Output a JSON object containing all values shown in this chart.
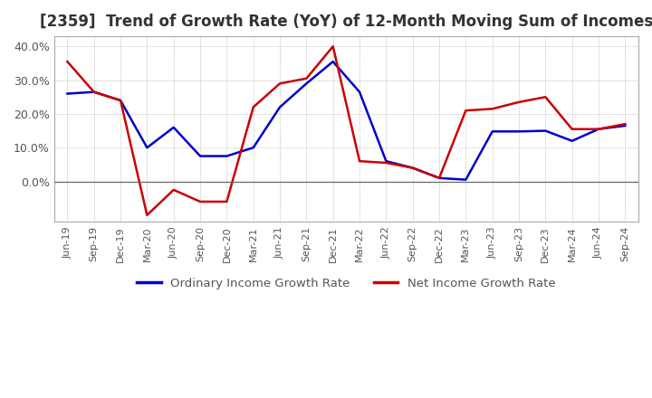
{
  "title": "[2359]  Trend of Growth Rate (YoY) of 12-Month Moving Sum of Incomes",
  "title_fontsize": 12,
  "ylim": [
    -0.12,
    0.43
  ],
  "yticks": [
    0.0,
    0.1,
    0.2,
    0.3,
    0.4
  ],
  "background_color": "#ffffff",
  "grid_color": "#aaaaaa",
  "legend_labels": [
    "Ordinary Income Growth Rate",
    "Net Income Growth Rate"
  ],
  "line_colors": [
    "#0000cc",
    "#cc0000"
  ],
  "x_labels": [
    "Jun-19",
    "Sep-19",
    "Dec-19",
    "Mar-20",
    "Jun-20",
    "Sep-20",
    "Dec-20",
    "Mar-21",
    "Jun-21",
    "Sep-21",
    "Dec-21",
    "Mar-22",
    "Jun-22",
    "Sep-22",
    "Dec-22",
    "Mar-23",
    "Jun-23",
    "Sep-23",
    "Dec-23",
    "Mar-24",
    "Jun-24",
    "Sep-24"
  ],
  "ordinary_income": [
    0.26,
    0.265,
    0.24,
    0.1,
    0.16,
    0.075,
    0.075,
    0.1,
    0.22,
    0.29,
    0.355,
    0.265,
    0.06,
    0.04,
    0.01,
    0.005,
    0.148,
    0.148,
    0.15,
    0.12,
    0.155,
    0.165
  ],
  "net_income": [
    0.355,
    0.265,
    0.24,
    -0.1,
    -0.025,
    -0.06,
    -0.06,
    0.22,
    0.29,
    0.305,
    0.4,
    0.06,
    0.055,
    0.04,
    0.01,
    0.21,
    0.215,
    0.235,
    0.25,
    0.155,
    0.155,
    0.17
  ]
}
